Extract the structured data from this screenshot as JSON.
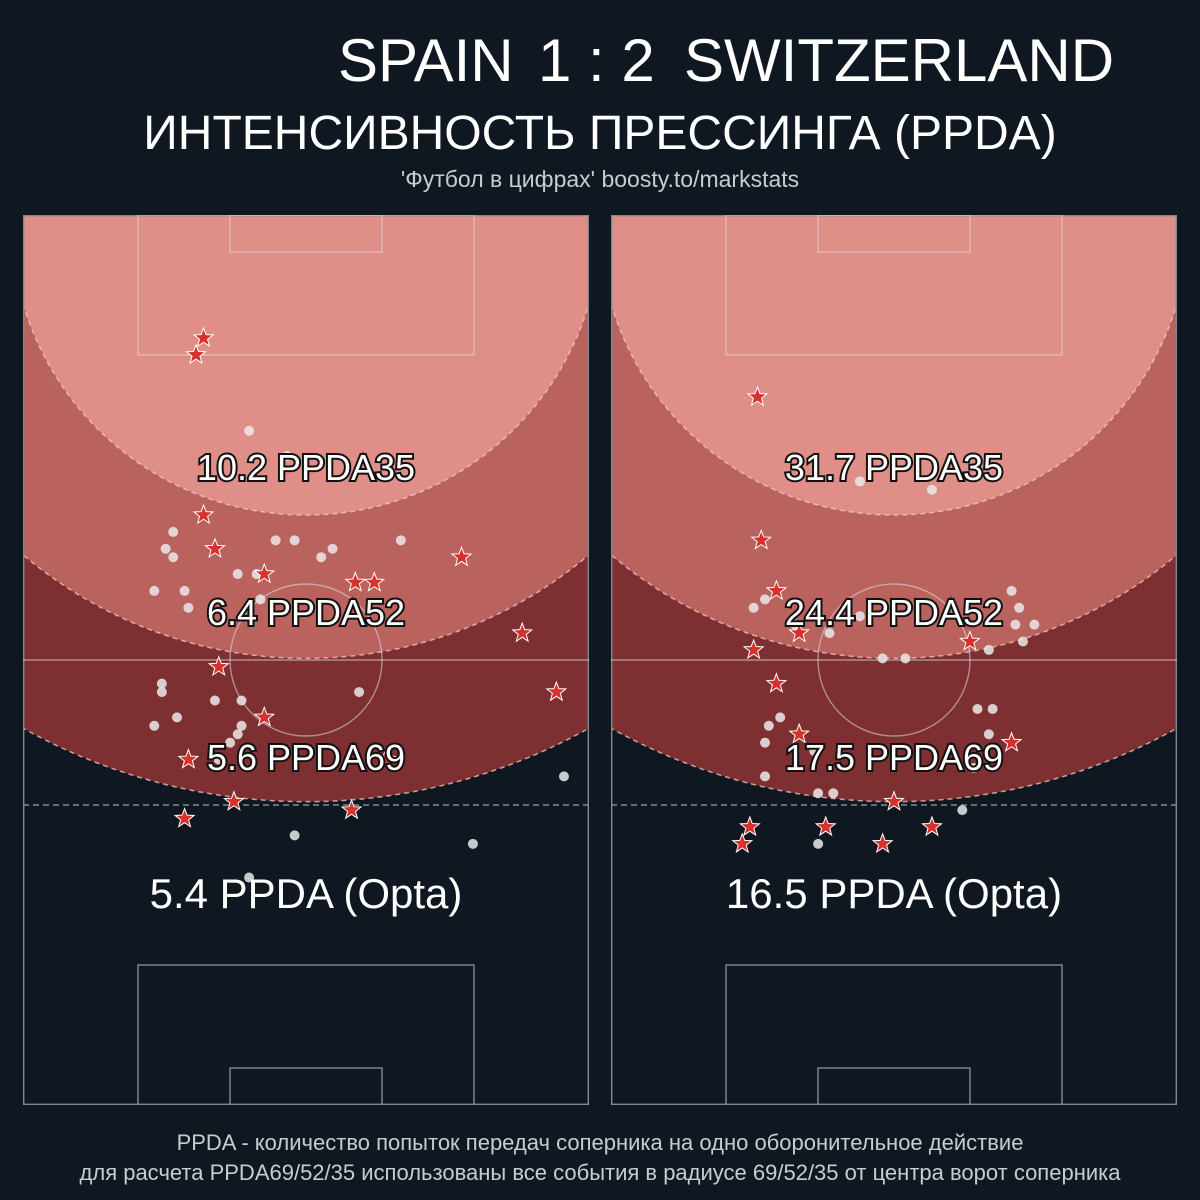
{
  "header": {
    "home_team": "SPAIN",
    "score": "1 : 2",
    "away_team": "SWITZERLAND",
    "subtitle": "ИНТЕНСИВНОСТЬ ПРЕССИНГА (PPDA)",
    "credit": "'Футбол в цифрах' boosty.to/markstats"
  },
  "footnote": {
    "line1": "PPDA - количество попыток передач соперника на одно оборонительное действие",
    "line2": "для расчета PPDA69/52/35 использованы все события в радиусе 69/52/35 от центра ворот соперника"
  },
  "colors": {
    "background": "#0f1820",
    "zone35": "#df8f87",
    "zone52": "#b9625e",
    "zone69": "#7d2f31",
    "star_fill": "#d5322d",
    "dot_fill": "#e9e9ea"
  },
  "chart_data": [
    {
      "type": "scatter",
      "team": "SPAIN",
      "ppda": {
        "r35": "10.2 PPDA35",
        "r52": "6.4 PPDA52",
        "r69": "5.6 PPDA69",
        "opta": "5.4 PPDA (Opta)"
      },
      "stars": [
        [
          -27,
          -14
        ],
        [
          -29,
          -16
        ],
        [
          74,
          -24
        ],
        [
          -27,
          -35
        ],
        [
          -24,
          -39
        ],
        [
          41,
          -40
        ],
        [
          -11,
          -42
        ],
        [
          13,
          -43
        ],
        [
          18,
          -43
        ],
        [
          57,
          -49
        ],
        [
          -23,
          -53
        ],
        [
          66,
          -56
        ],
        [
          -11,
          -59
        ],
        [
          21,
          -64
        ],
        [
          -31,
          -64
        ],
        [
          -19,
          -69
        ],
        [
          -32,
          -71
        ],
        [
          12,
          -70
        ],
        [
          92,
          -73
        ]
      ],
      "dots": [
        [
          75,
          -6
        ],
        [
          -5,
          -28
        ],
        [
          -15,
          -25
        ],
        [
          -3,
          -38
        ],
        [
          -13,
          -42
        ],
        [
          -32,
          -44
        ],
        [
          -37,
          -39
        ],
        [
          -12,
          -45
        ],
        [
          -31,
          -46
        ],
        [
          -24,
          -57
        ],
        [
          -38,
          -55
        ],
        [
          -17,
          -57
        ],
        [
          79,
          -45
        ],
        [
          87,
          -57
        ],
        [
          68,
          -66
        ],
        [
          -17,
          -60
        ],
        [
          -18,
          -61
        ],
        [
          -34,
          -59
        ],
        [
          87,
          -76
        ],
        [
          14,
          -56
        ],
        [
          -3,
          -73
        ],
        [
          -20,
          -62
        ],
        [
          44,
          -74
        ],
        [
          -15,
          -78
        ],
        [
          -40,
          -44
        ],
        [
          -35,
          -37
        ],
        [
          -35,
          -40
        ],
        [
          -8,
          -38
        ],
        [
          7,
          -39
        ],
        [
          25,
          -38
        ],
        [
          4,
          -40
        ],
        [
          -18,
          -42
        ],
        [
          -23,
          -64
        ],
        [
          -38,
          -56
        ],
        [
          -40,
          -60
        ]
      ]
    },
    {
      "type": "scatter",
      "team": "SWITZERLAND",
      "ppda": {
        "r35": "31.7 PPDA35",
        "r52": "24.4 PPDA52",
        "r69": "17.5 PPDA69",
        "opta": "16.5 PPDA (Opta)"
      },
      "stars": [
        [
          -36,
          -21
        ],
        [
          -35,
          -38
        ],
        [
          -25,
          -49
        ],
        [
          20,
          -50
        ],
        [
          -31,
          -44
        ],
        [
          -31,
          -55
        ],
        [
          -25,
          -61
        ],
        [
          31,
          -62
        ],
        [
          10,
          -72
        ],
        [
          0,
          -69
        ],
        [
          -18,
          -72
        ],
        [
          -40,
          -74
        ],
        [
          -38,
          -72
        ],
        [
          -3,
          -74
        ],
        [
          -37,
          -51
        ]
      ],
      "dots": [
        [
          -9,
          -31
        ],
        [
          10,
          -32
        ],
        [
          -34,
          -45
        ],
        [
          -26,
          -48
        ],
        [
          -9,
          -47
        ],
        [
          -37,
          -46
        ],
        [
          -17,
          -49
        ],
        [
          -34,
          -66
        ],
        [
          -33,
          -60
        ],
        [
          -34,
          -62
        ],
        [
          -30,
          -59
        ],
        [
          -25,
          -61
        ],
        [
          3,
          -52
        ],
        [
          22,
          -58
        ],
        [
          18,
          -70
        ],
        [
          -21,
          -63
        ],
        [
          -20,
          -68
        ],
        [
          -16,
          -68
        ],
        [
          -20,
          -74
        ],
        [
          21,
          -65
        ],
        [
          31,
          -44
        ],
        [
          33,
          -46
        ],
        [
          37,
          -48
        ],
        [
          -3,
          -52
        ],
        [
          -22,
          -47
        ],
        [
          25,
          -51
        ],
        [
          26,
          -58
        ],
        [
          25,
          -61
        ],
        [
          32,
          -48
        ],
        [
          34,
          -50
        ]
      ]
    }
  ]
}
